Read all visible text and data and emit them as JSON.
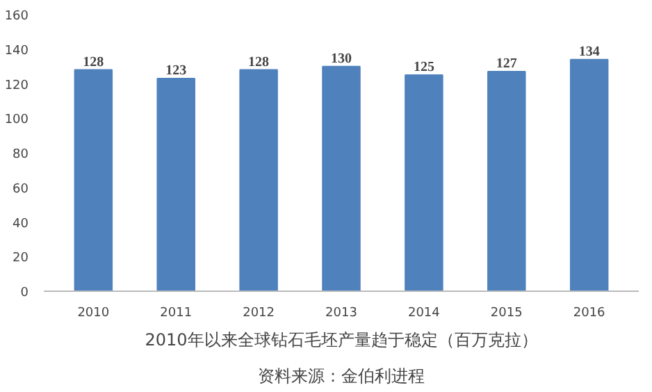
{
  "chart_data": {
    "type": "bar",
    "categories": [
      "2010",
      "2011",
      "2012",
      "2013",
      "2014",
      "2015",
      "2016"
    ],
    "values": [
      128,
      123,
      128,
      130,
      125,
      127,
      134
    ],
    "color": "#4f81bd",
    "ylim": [
      0,
      160
    ],
    "yticks": [
      0,
      20,
      40,
      60,
      80,
      100,
      120,
      140,
      160
    ],
    "grid": false,
    "data_labels": true,
    "annotations": [
      "2010年以来全球钻石毛坯产量趋于稳定（百万克拉）",
      "资料来源：金伯利进程"
    ]
  }
}
